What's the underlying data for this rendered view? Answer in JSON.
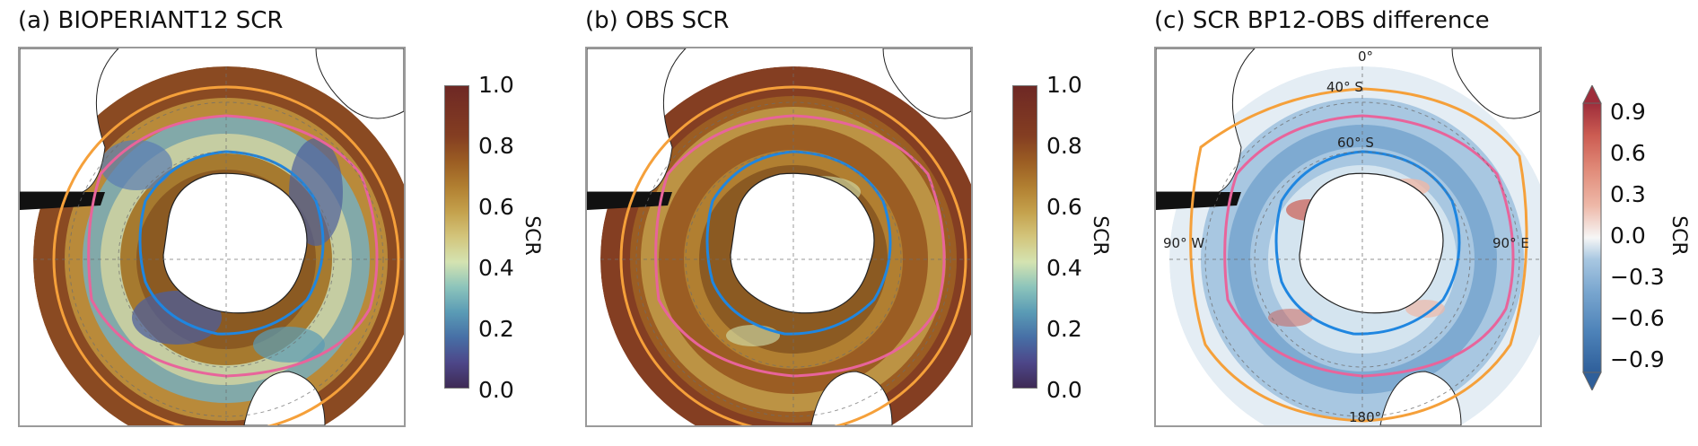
{
  "panels": [
    {
      "title": "(a) BIOPERIANT12 SCR"
    },
    {
      "title": "(b) OBS SCR"
    },
    {
      "title": "(c) SCR BP12-OBS difference"
    }
  ],
  "colorbar_scr": {
    "label": "SCR",
    "ticks": [
      "1.0",
      "0.8",
      "0.6",
      "0.4",
      "0.2",
      "0.0"
    ],
    "colors": [
      "#3e2a55",
      "#4d4789",
      "#476fa6",
      "#5a9bb5",
      "#8cc4bb",
      "#d4e3b1",
      "#d3c57c",
      "#c4a14c",
      "#b17f31",
      "#9b5d23",
      "#843e22",
      "#6e2824"
    ]
  },
  "colorbar_diff": {
    "label": "SCR",
    "ticks": [
      "0.9",
      "0.6",
      "0.3",
      "0.0",
      "−0.3",
      "−0.6",
      "−0.9"
    ],
    "colors": [
      "#2f5f9a",
      "#4d82b8",
      "#79a6cf",
      "#a8c7e1",
      "#d4e4ef",
      "#f6f6f6",
      "#f4dcd4",
      "#eeb8a8",
      "#e18c7a",
      "#cc5c52",
      "#9e2d3b"
    ]
  },
  "geo_labels": {
    "lon_0": "0°",
    "lat_40": "40° S",
    "lat_60": "60° S",
    "lon_90w": "90° W",
    "lon_90e": "90° E",
    "lon_180": "180°"
  },
  "fronts": {
    "outer_color": "#f5a03a",
    "middle_color": "#e8649b",
    "inner_color": "#1f86e0"
  }
}
